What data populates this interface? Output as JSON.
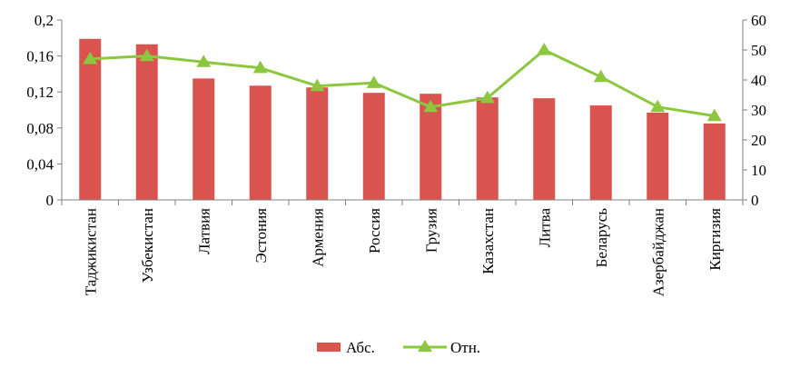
{
  "chart_data": {
    "type": "bar",
    "categories": [
      "Таджикистан",
      "Узбекистан",
      "Латвия",
      "Эстония",
      "Армения",
      "Россия",
      "Грузия",
      "Казахстан",
      "Литва",
      "Беларусь",
      "Азербайджан",
      "Киргизия"
    ],
    "series": [
      {
        "name": "Абс.",
        "type": "bar",
        "axis": "left",
        "color": "#d9534f",
        "values": [
          0.179,
          0.173,
          0.135,
          0.127,
          0.125,
          0.119,
          0.118,
          0.114,
          0.113,
          0.105,
          0.097,
          0.085
        ]
      },
      {
        "name": "Отн.",
        "type": "line",
        "axis": "right",
        "color": "#8dc63f",
        "marker": "triangle",
        "values": [
          47,
          48,
          46,
          44,
          38,
          39,
          31,
          34,
          50,
          41,
          31,
          28
        ]
      }
    ],
    "y_left": {
      "min": 0,
      "max": 0.2,
      "ticks": [
        "0",
        "0,04",
        "0,08",
        "0,12",
        "0,16",
        "0,2"
      ]
    },
    "y_right": {
      "min": 0,
      "max": 60,
      "ticks": [
        "0",
        "10",
        "20",
        "30",
        "40",
        "50",
        "60"
      ]
    },
    "grid": false,
    "legend": "bottom-center",
    "xlabel": "",
    "ylabel": "",
    "title": ""
  }
}
